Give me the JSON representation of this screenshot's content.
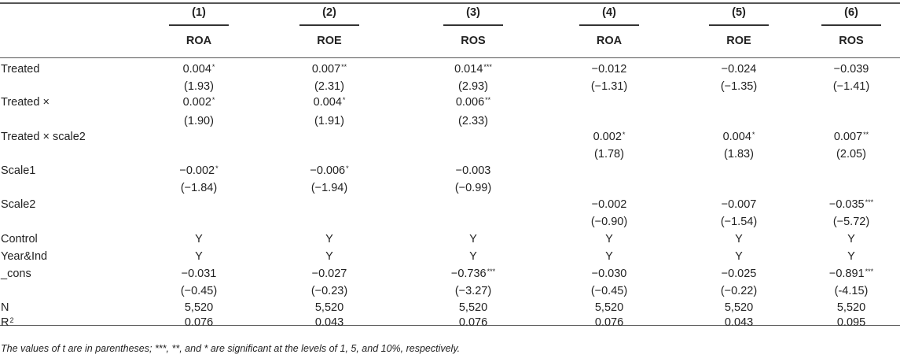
{
  "table": {
    "columns": [
      {
        "num": "(1)",
        "var": "ROA"
      },
      {
        "num": "(2)",
        "var": "ROE"
      },
      {
        "num": "(3)",
        "var": "ROS"
      },
      {
        "num": "(4)",
        "var": "ROA"
      },
      {
        "num": "(5)",
        "var": "ROE"
      },
      {
        "num": "(6)",
        "var": "ROS"
      }
    ],
    "rows": [
      {
        "label": "Treated",
        "cells": [
          {
            "v": "0.004",
            "s": "*"
          },
          {
            "v": "0.007",
            "s": "**"
          },
          {
            "v": "0.014",
            "s": "***"
          },
          {
            "v": "−0.012",
            "s": ""
          },
          {
            "v": "−0.024",
            "s": ""
          },
          {
            "v": "−0.039",
            "s": ""
          }
        ]
      },
      {
        "label": "",
        "cells": [
          {
            "v": "(1.93)",
            "s": ""
          },
          {
            "v": "(2.31)",
            "s": ""
          },
          {
            "v": "(2.93)",
            "s": ""
          },
          {
            "v": "(−1.31)",
            "s": ""
          },
          {
            "v": "(−1.35)",
            "s": ""
          },
          {
            "v": "(−1.41)",
            "s": ""
          }
        ]
      },
      {
        "label": "Treated ×",
        "cells": [
          {
            "v": "0.002",
            "s": "*"
          },
          {
            "v": "0.004",
            "s": "*"
          },
          {
            "v": "0.006",
            "s": "**"
          },
          {
            "v": "",
            "s": ""
          },
          {
            "v": "",
            "s": ""
          },
          {
            "v": "",
            "s": ""
          }
        ]
      },
      {
        "label": "",
        "cells": [
          {
            "v": "(1.90)",
            "s": ""
          },
          {
            "v": "(1.91)",
            "s": ""
          },
          {
            "v": "(2.33)",
            "s": ""
          },
          {
            "v": "",
            "s": ""
          },
          {
            "v": "",
            "s": ""
          },
          {
            "v": "",
            "s": ""
          }
        ]
      },
      {
        "label": "Treated × scale2",
        "cells": [
          {
            "v": "",
            "s": ""
          },
          {
            "v": "",
            "s": ""
          },
          {
            "v": "",
            "s": ""
          },
          {
            "v": "0.002",
            "s": "*"
          },
          {
            "v": "0.004",
            "s": "*"
          },
          {
            "v": "0.007",
            "s": "**"
          }
        ]
      },
      {
        "label": "",
        "cells": [
          {
            "v": "",
            "s": ""
          },
          {
            "v": "",
            "s": ""
          },
          {
            "v": "",
            "s": ""
          },
          {
            "v": "(1.78)",
            "s": ""
          },
          {
            "v": "(1.83)",
            "s": ""
          },
          {
            "v": "(2.05)",
            "s": ""
          }
        ]
      },
      {
        "label": "Scale1",
        "cells": [
          {
            "v": "−0.002",
            "s": "*"
          },
          {
            "v": "−0.006",
            "s": "*"
          },
          {
            "v": "−0.003",
            "s": ""
          },
          {
            "v": "",
            "s": ""
          },
          {
            "v": "",
            "s": ""
          },
          {
            "v": "",
            "s": ""
          }
        ]
      },
      {
        "label": "",
        "cells": [
          {
            "v": "(−1.84)",
            "s": ""
          },
          {
            "v": "(−1.94)",
            "s": ""
          },
          {
            "v": "(−0.99)",
            "s": ""
          },
          {
            "v": "",
            "s": ""
          },
          {
            "v": "",
            "s": ""
          },
          {
            "v": "",
            "s": ""
          }
        ]
      },
      {
        "label": "Scale2",
        "cells": [
          {
            "v": "",
            "s": ""
          },
          {
            "v": "",
            "s": ""
          },
          {
            "v": "",
            "s": ""
          },
          {
            "v": "−0.002",
            "s": ""
          },
          {
            "v": "−0.007",
            "s": ""
          },
          {
            "v": "−0.035",
            "s": "***"
          }
        ]
      },
      {
        "label": "",
        "cells": [
          {
            "v": "",
            "s": ""
          },
          {
            "v": "",
            "s": ""
          },
          {
            "v": "",
            "s": ""
          },
          {
            "v": "(−0.90)",
            "s": ""
          },
          {
            "v": "(−1.54)",
            "s": ""
          },
          {
            "v": "(−5.72)",
            "s": ""
          }
        ]
      },
      {
        "label": "Control",
        "cells": [
          {
            "v": "Y",
            "s": ""
          },
          {
            "v": "Y",
            "s": ""
          },
          {
            "v": "Y",
            "s": ""
          },
          {
            "v": "Y",
            "s": ""
          },
          {
            "v": "Y",
            "s": ""
          },
          {
            "v": "Y",
            "s": ""
          }
        ]
      },
      {
        "label": "Year&Ind",
        "cells": [
          {
            "v": "Y",
            "s": ""
          },
          {
            "v": "Y",
            "s": ""
          },
          {
            "v": "Y",
            "s": ""
          },
          {
            "v": "Y",
            "s": ""
          },
          {
            "v": "Y",
            "s": ""
          },
          {
            "v": "Y",
            "s": ""
          }
        ]
      },
      {
        "label": "_cons",
        "cells": [
          {
            "v": "−0.031",
            "s": ""
          },
          {
            "v": "−0.027",
            "s": ""
          },
          {
            "v": "−0.736",
            "s": "***"
          },
          {
            "v": "−0.030",
            "s": ""
          },
          {
            "v": "−0.025",
            "s": ""
          },
          {
            "v": "−0.891",
            "s": "***"
          }
        ]
      },
      {
        "label": "",
        "cells": [
          {
            "v": "(−0.45)",
            "s": ""
          },
          {
            "v": "(−0.23)",
            "s": ""
          },
          {
            "v": "(−3.27)",
            "s": ""
          },
          {
            "v": "(−0.45)",
            "s": ""
          },
          {
            "v": "(−0.22)",
            "s": ""
          },
          {
            "v": "(-4.15)",
            "s": ""
          }
        ]
      },
      {
        "label": "N",
        "cells": [
          {
            "v": "5,520",
            "s": ""
          },
          {
            "v": "5,520",
            "s": ""
          },
          {
            "v": "5,520",
            "s": ""
          },
          {
            "v": "5,520",
            "s": ""
          },
          {
            "v": "5,520",
            "s": ""
          },
          {
            "v": "5,520",
            "s": ""
          }
        ]
      },
      {
        "label": "R",
        "label_sup": "2",
        "cells": [
          {
            "v": "0.076",
            "s": ""
          },
          {
            "v": "0.043",
            "s": ""
          },
          {
            "v": "0.076",
            "s": ""
          },
          {
            "v": "0.076",
            "s": ""
          },
          {
            "v": "0.043",
            "s": ""
          },
          {
            "v": "0.095",
            "s": ""
          }
        ]
      }
    ],
    "note": "The values of t are in parentheses; ***, **, and * are significant at the levels of 1, 5, and 10%, respectively."
  }
}
